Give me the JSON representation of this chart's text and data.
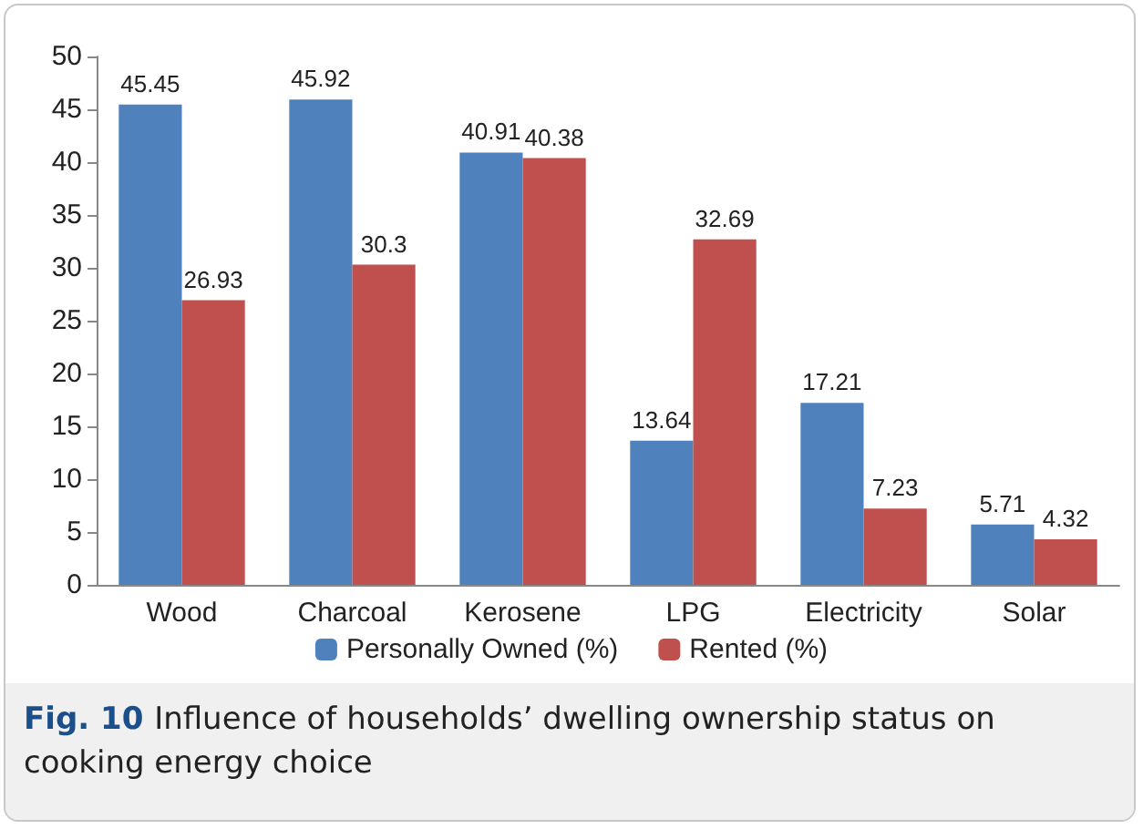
{
  "chart_data": {
    "type": "bar",
    "categories": [
      "Wood",
      "Charcoal",
      "Kerosene",
      "LPG",
      "Electricity",
      "Solar"
    ],
    "series": [
      {
        "name": "Personally Owned (%)",
        "color": "#4f81bd",
        "values": [
          45.45,
          45.92,
          40.91,
          13.64,
          17.21,
          5.71
        ]
      },
      {
        "name": "Rented (%)",
        "color": "#c0504d",
        "values": [
          26.93,
          30.3,
          40.38,
          32.69,
          7.23,
          4.32
        ]
      }
    ],
    "ylim": [
      0,
      50
    ],
    "yticks": [
      0,
      5,
      10,
      15,
      20,
      25,
      30,
      35,
      40,
      45,
      50
    ],
    "grid": false,
    "legend": "bottom",
    "data_labels": true,
    "annotations": [
      "Fig. 10",
      "Influence of households’ dwelling ownership status on cooking energy choice"
    ]
  }
}
